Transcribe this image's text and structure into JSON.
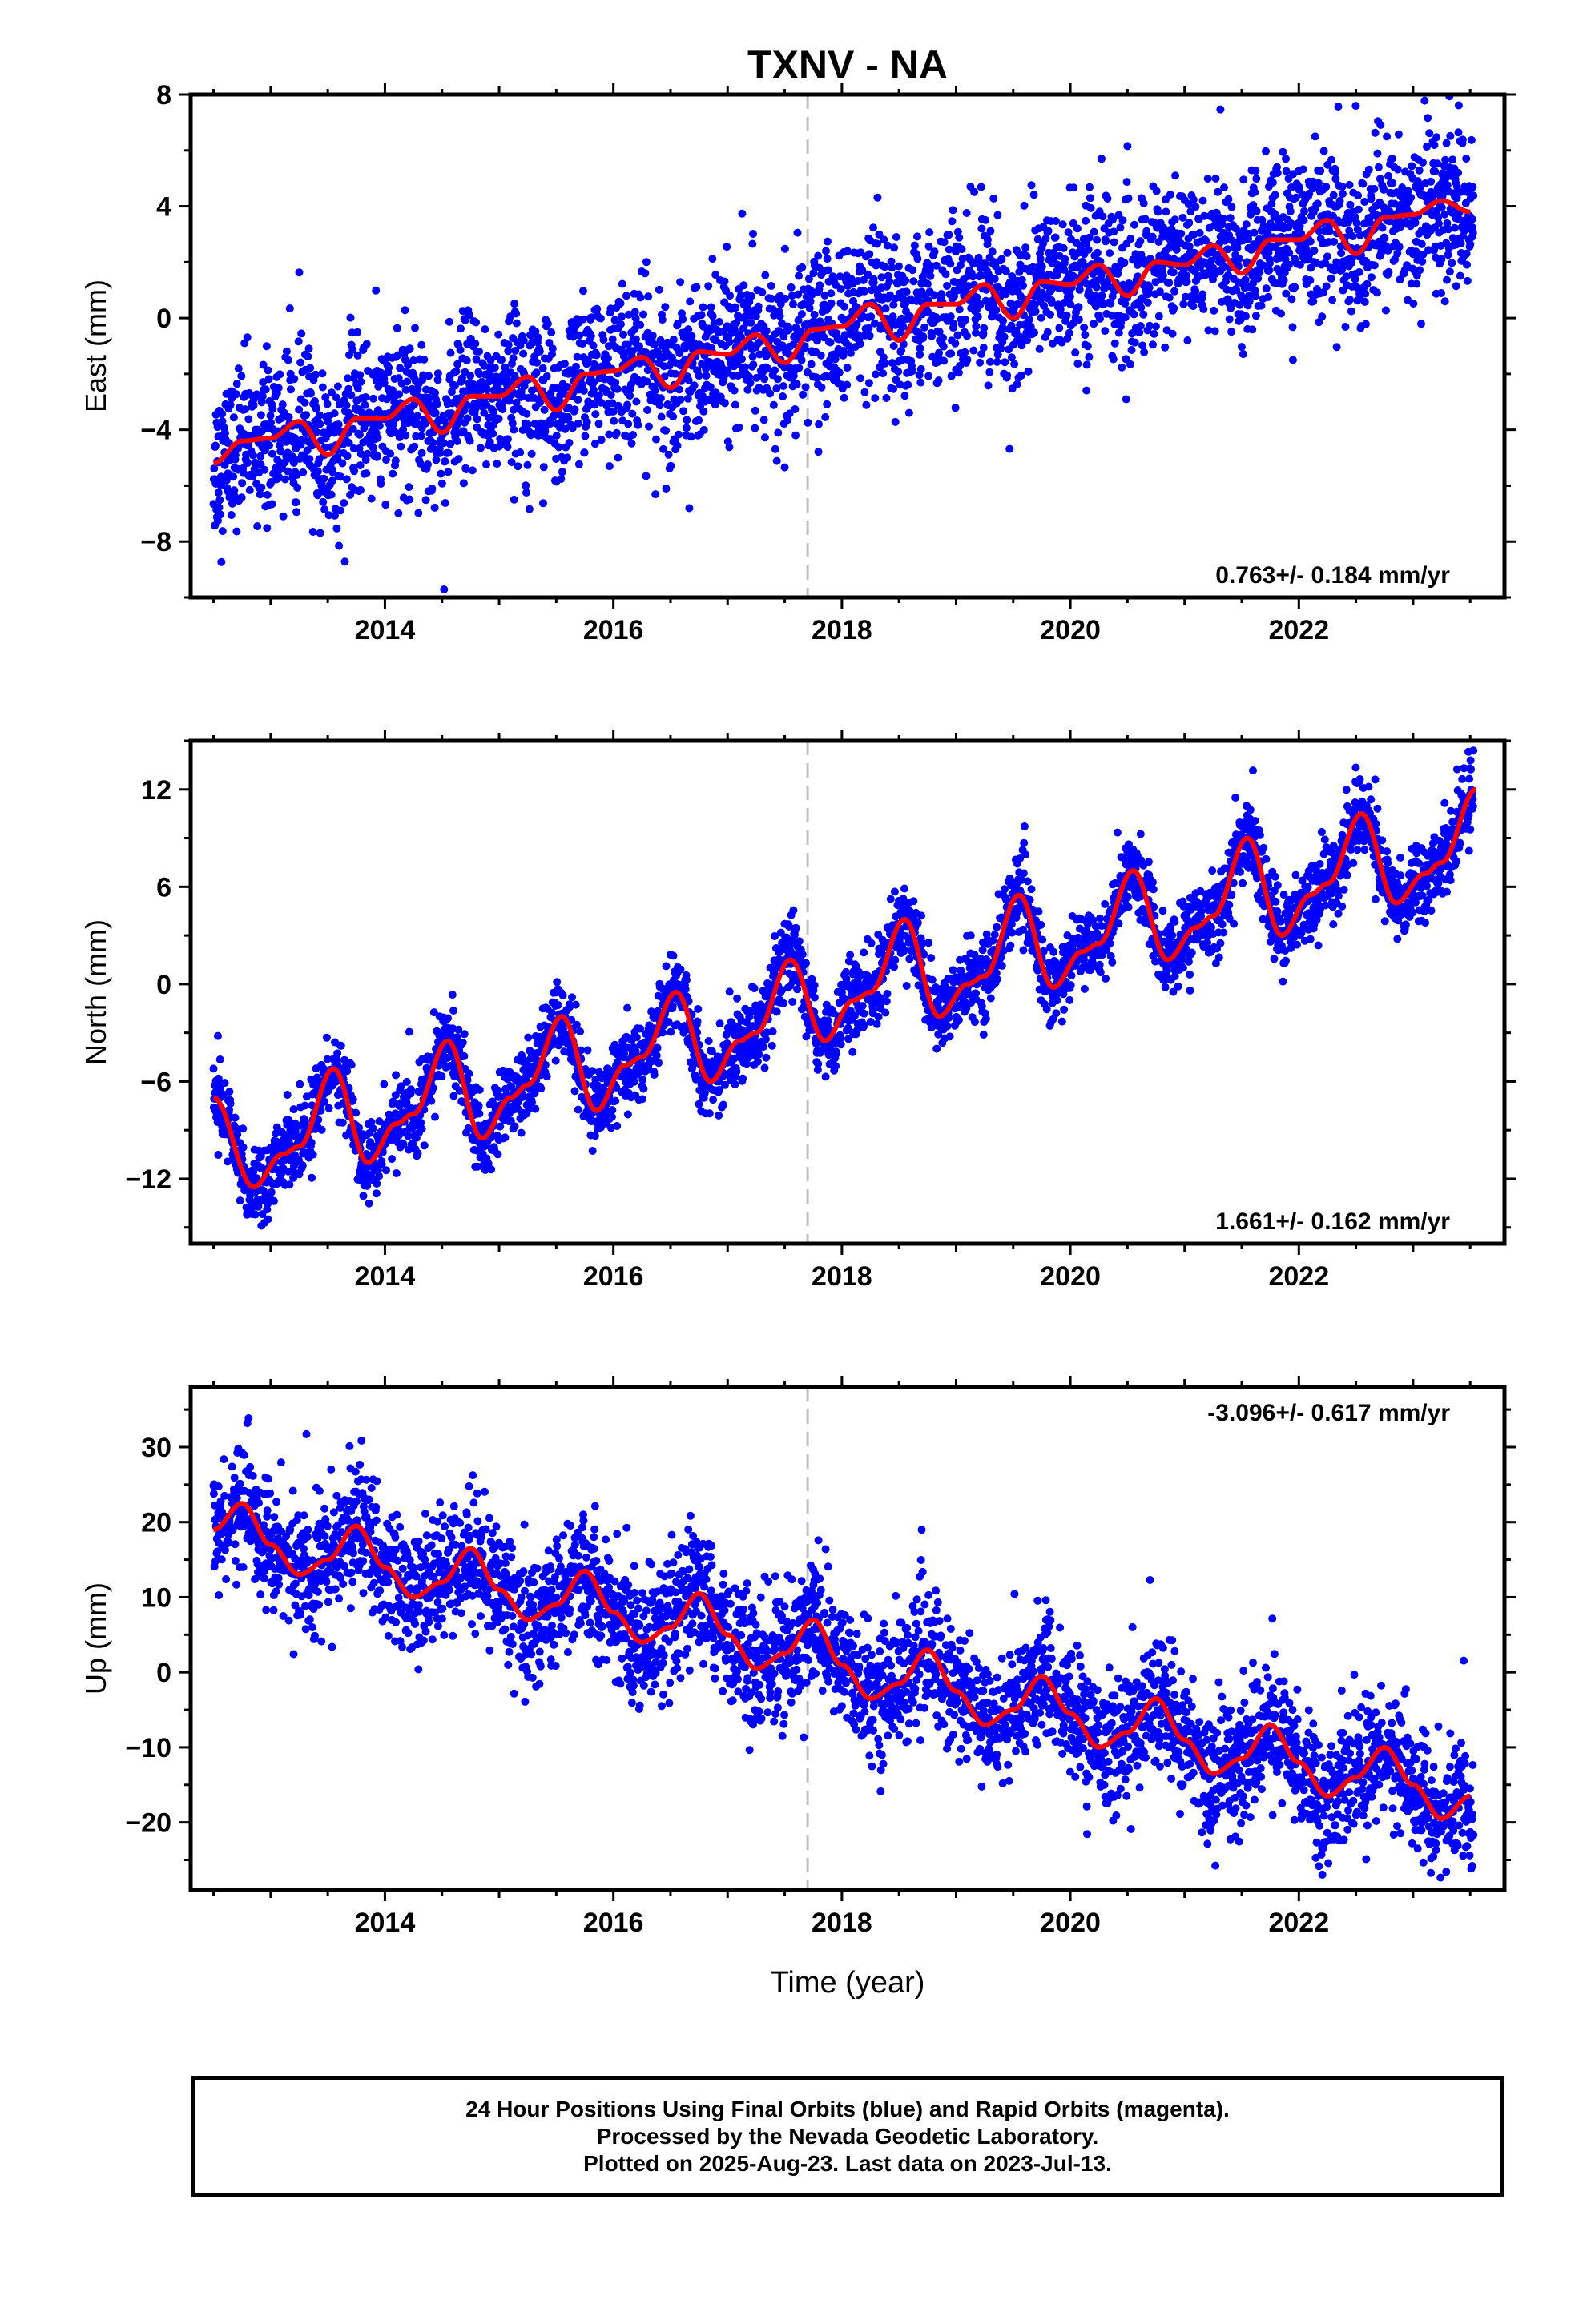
{
  "title": "TXNV - NA",
  "xlabel": "Time (year)",
  "footer": {
    "line1": "24 Hour Positions Using Final Orbits (blue) and Rapid Orbits (magenta).",
    "line2": "Processed by the Nevada Geodetic Laboratory.",
    "line3": "Plotted on 2025-Aug-23. Last data on 2023-Jul-13."
  },
  "colors": {
    "points": "#0000ff",
    "model": "#ff0000",
    "divider": "#c0c0c0"
  },
  "chart_data": [
    {
      "type": "scatter",
      "component": "East",
      "ylabel": "East (mm)",
      "rate_label": "0.763+/- 0.184 mm/yr",
      "rate_position": "bottom-right",
      "xlim": [
        2012.3,
        2023.8
      ],
      "ylim": [
        -10.0,
        8.0
      ],
      "yticks": [
        -8,
        -4,
        0,
        4,
        8
      ],
      "xticks": [
        2014,
        2016,
        2018,
        2020,
        2022
      ],
      "equipment_change_year": 2017.7,
      "rate_mm_per_yr": 0.763,
      "model": {
        "x": [
          2012.5,
          2012.75,
          2013.0,
          2013.25,
          2013.5,
          2013.75,
          2014.0,
          2014.25,
          2014.5,
          2014.75,
          2015.0,
          2015.25,
          2015.5,
          2015.75,
          2016.0,
          2016.25,
          2016.5,
          2016.75,
          2017.0,
          2017.25,
          2017.5,
          2017.75,
          2018.0,
          2018.25,
          2018.5,
          2018.75,
          2019.0,
          2019.25,
          2019.5,
          2019.75,
          2020.0,
          2020.25,
          2020.5,
          2020.75,
          2021.0,
          2021.25,
          2021.5,
          2021.75,
          2022.0,
          2022.25,
          2022.5,
          2022.75,
          2023.0,
          2023.25,
          2023.5
        ],
        "y": [
          -5.2,
          -4.4,
          -4.3,
          -3.7,
          -4.9,
          -3.6,
          -3.6,
          -2.9,
          -4.1,
          -2.8,
          -2.8,
          -2.1,
          -3.3,
          -2.0,
          -1.9,
          -1.4,
          -2.5,
          -1.2,
          -1.3,
          -0.6,
          -1.6,
          -0.4,
          -0.3,
          0.5,
          -0.8,
          0.5,
          0.5,
          1.2,
          0.0,
          1.3,
          1.2,
          1.9,
          0.8,
          2.0,
          1.9,
          2.6,
          1.6,
          2.8,
          2.8,
          3.5,
          2.3,
          3.6,
          3.7,
          4.2,
          3.8
        ]
      },
      "noise_mm": 1.4
    },
    {
      "type": "scatter",
      "component": "North",
      "ylabel": "North (mm)",
      "rate_label": "1.661+/- 0.162 mm/yr",
      "rate_position": "bottom-right",
      "xlim": [
        2012.3,
        2023.8
      ],
      "ylim": [
        -16.0,
        15.0
      ],
      "yticks": [
        -12,
        -6,
        0,
        6,
        12
      ],
      "xticks": [
        2014,
        2016,
        2018,
        2020,
        2022
      ],
      "equipment_change_year": 2017.7,
      "rate_mm_per_yr": 1.661,
      "model": {
        "x": [
          2012.5,
          2012.85,
          2013.1,
          2013.25,
          2013.55,
          2013.85,
          2014.1,
          2014.25,
          2014.55,
          2014.85,
          2015.1,
          2015.25,
          2015.55,
          2015.85,
          2016.1,
          2016.25,
          2016.55,
          2016.85,
          2017.1,
          2017.25,
          2017.55,
          2017.85,
          2018.1,
          2018.25,
          2018.55,
          2018.85,
          2019.1,
          2019.25,
          2019.55,
          2019.85,
          2020.1,
          2020.25,
          2020.55,
          2020.85,
          2021.1,
          2021.25,
          2021.55,
          2021.85,
          2022.1,
          2022.25,
          2022.55,
          2022.85,
          2023.1,
          2023.25,
          2023.55
        ],
        "y": [
          -7.0,
          -12.5,
          -10.5,
          -10.0,
          -5.2,
          -11.0,
          -8.6,
          -8.0,
          -3.5,
          -9.5,
          -7.0,
          -6.2,
          -2.0,
          -7.8,
          -5.0,
          -4.5,
          -0.5,
          -6.0,
          -3.5,
          -3.0,
          1.5,
          -3.5,
          -1.0,
          -0.5,
          4.0,
          -2.0,
          0.0,
          0.5,
          5.5,
          -0.2,
          2.0,
          2.5,
          7.0,
          1.5,
          3.5,
          4.2,
          9.0,
          3.0,
          5.5,
          6.2,
          10.5,
          5.0,
          6.8,
          7.5,
          12.0
        ]
      },
      "noise_mm": 1.2
    },
    {
      "type": "scatter",
      "component": "Up",
      "ylabel": "Up (mm)",
      "rate_label": "-3.096+/- 0.617 mm/yr",
      "rate_position": "top-right",
      "xlim": [
        2012.3,
        2023.8
      ],
      "ylim": [
        -29.0,
        38.0
      ],
      "yticks": [
        -20,
        -10,
        0,
        10,
        20,
        30
      ],
      "xticks": [
        2014,
        2016,
        2018,
        2020,
        2022
      ],
      "equipment_change_year": 2017.7,
      "rate_mm_per_yr": -3.096,
      "model": {
        "x": [
          2012.5,
          2012.75,
          2013.0,
          2013.25,
          2013.5,
          2013.75,
          2014.0,
          2014.25,
          2014.5,
          2014.75,
          2015.0,
          2015.25,
          2015.5,
          2015.75,
          2016.0,
          2016.25,
          2016.5,
          2016.75,
          2017.0,
          2017.25,
          2017.5,
          2017.75,
          2018.0,
          2018.25,
          2018.5,
          2018.75,
          2019.0,
          2019.25,
          2019.5,
          2019.75,
          2020.0,
          2020.25,
          2020.5,
          2020.75,
          2021.0,
          2021.25,
          2021.5,
          2021.75,
          2022.0,
          2022.25,
          2022.5,
          2022.75,
          2023.0,
          2023.25,
          2023.5
        ],
        "y": [
          19.0,
          22.5,
          17.0,
          13.0,
          15.0,
          19.5,
          14.0,
          10.0,
          12.0,
          16.5,
          11.0,
          7.0,
          9.0,
          13.5,
          8.0,
          4.0,
          6.0,
          10.5,
          5.0,
          0.5,
          2.5,
          7.0,
          1.0,
          -3.5,
          -1.5,
          3.0,
          -2.5,
          -7.0,
          -5.0,
          -0.5,
          -5.5,
          -10.0,
          -8.0,
          -3.5,
          -9.0,
          -13.5,
          -11.5,
          -7.0,
          -12.0,
          -16.5,
          -14.0,
          -10.0,
          -15.0,
          -19.5,
          -16.5
        ]
      },
      "noise_mm": 4.3
    }
  ]
}
